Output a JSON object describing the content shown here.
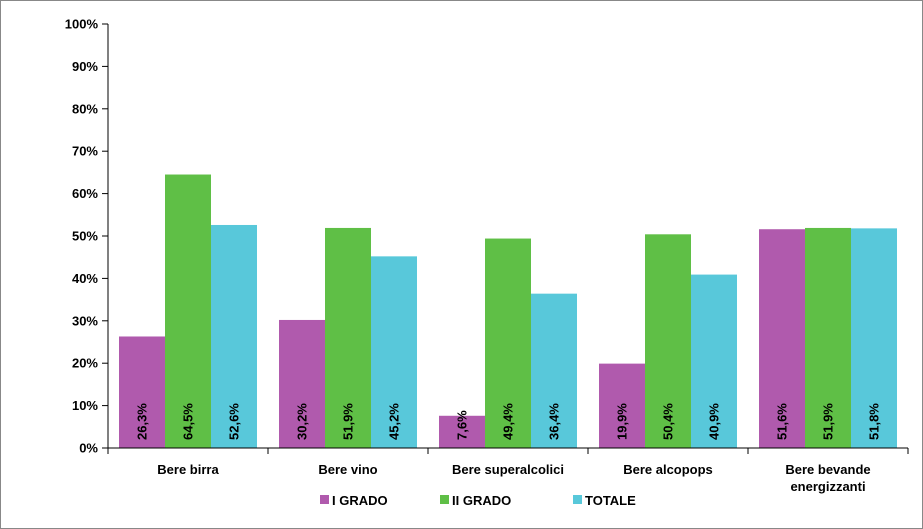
{
  "chart_data": {
    "type": "bar",
    "categories": [
      "Bere birra",
      "Bere vino",
      "Bere superalcolici",
      "Bere alcopops",
      "Bere bevande energizzanti"
    ],
    "category_lines": [
      [
        "Bere birra"
      ],
      [
        "Bere vino"
      ],
      [
        "Bere superalcolici"
      ],
      [
        "Bere alcopops"
      ],
      [
        "Bere bevande",
        "energizzanti"
      ]
    ],
    "series": [
      {
        "name": "I GRADO",
        "color": "#B05AAD",
        "values": [
          26.3,
          30.2,
          7.6,
          19.9,
          51.6
        ],
        "labels": [
          "26,3%",
          "30,2%",
          "7,6%",
          "19,9%",
          "51,6%"
        ]
      },
      {
        "name": "II GRADO",
        "color": "#5FBF46",
        "values": [
          64.5,
          51.9,
          49.4,
          50.4,
          51.9
        ],
        "labels": [
          "64,5%",
          "51,9%",
          "49,4%",
          "50,4%",
          "51,9%"
        ]
      },
      {
        "name": "TOTALE",
        "color": "#58C8DA",
        "values": [
          52.6,
          45.2,
          36.4,
          40.9,
          51.8
        ],
        "labels": [
          "52,6%",
          "45,2%",
          "36,4%",
          "40,9%",
          "51,8%"
        ]
      }
    ],
    "yticks": [
      0,
      10,
      20,
      30,
      40,
      50,
      60,
      70,
      80,
      90,
      100
    ],
    "ytick_labels": [
      "0%",
      "10%",
      "20%",
      "30%",
      "40%",
      "50%",
      "60%",
      "70%",
      "80%",
      "90%",
      "100%"
    ],
    "ylim": [
      0,
      100
    ],
    "title": "",
    "xlabel": "",
    "ylabel": "",
    "grid": false,
    "legend_position": "bottom"
  }
}
